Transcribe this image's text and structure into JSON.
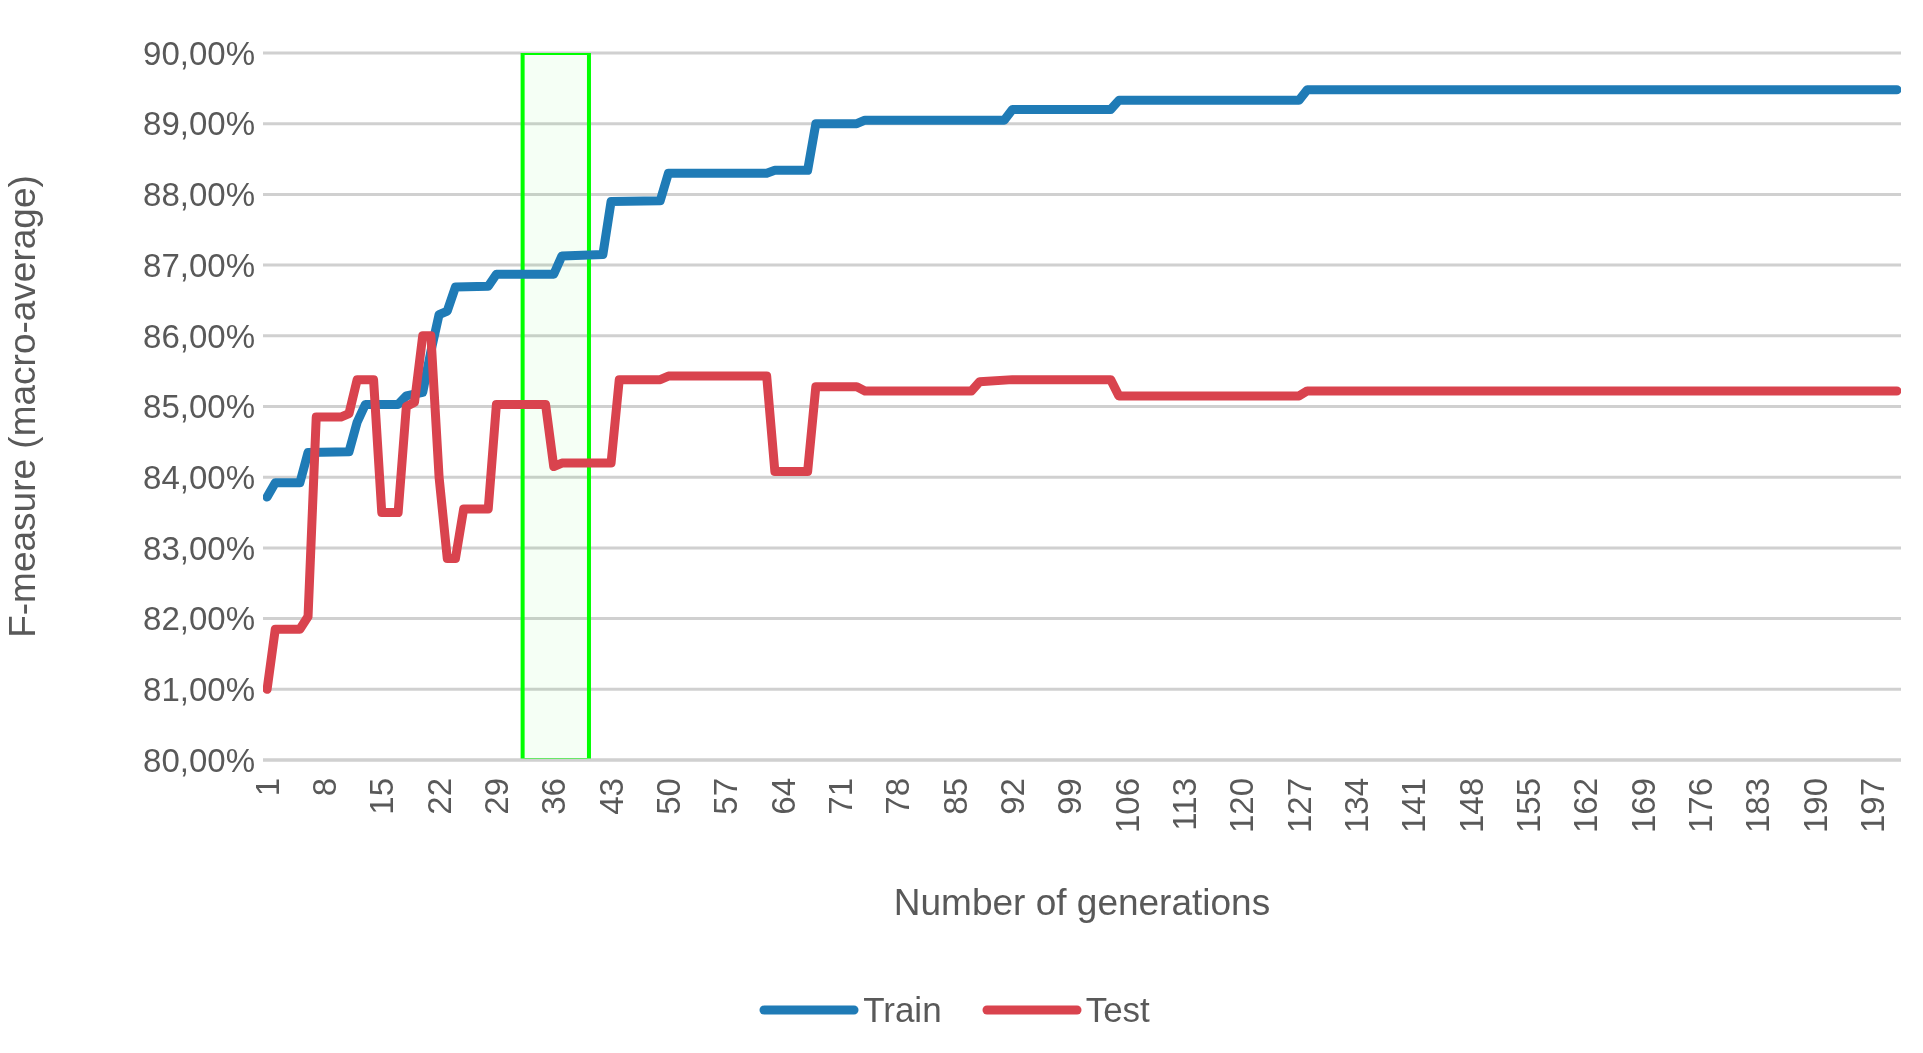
{
  "chart_data": {
    "type": "line",
    "xlabel": "Number of generations",
    "ylabel": "F-measure (macro-average)",
    "xlim": [
      0.5,
      200.5
    ],
    "xticks": [
      1,
      8,
      15,
      22,
      29,
      36,
      43,
      50,
      57,
      64,
      71,
      78,
      85,
      92,
      99,
      106,
      113,
      120,
      127,
      134,
      141,
      148,
      155,
      162,
      169,
      176,
      183,
      190,
      197
    ],
    "ylim": [
      80,
      90
    ],
    "yticks": [
      {
        "value": 80,
        "label": "80,00%"
      },
      {
        "value": 81,
        "label": "81,00%"
      },
      {
        "value": 82,
        "label": "82,00%"
      },
      {
        "value": 83,
        "label": "83,00%"
      },
      {
        "value": 84,
        "label": "84,00%"
      },
      {
        "value": 85,
        "label": "85,00%"
      },
      {
        "value": 86,
        "label": "86,00%"
      },
      {
        "value": 87,
        "label": "87,00%"
      },
      {
        "value": 88,
        "label": "88,00%"
      },
      {
        "value": 89,
        "label": "89,00%"
      },
      {
        "value": 90,
        "label": "90,00%"
      }
    ],
    "bands": [
      {
        "axis": "x",
        "from": 32.2,
        "to": 40.3,
        "color": "#00ff00"
      }
    ],
    "grid": "y",
    "legend": "bottom",
    "marker": "none",
    "line_style": "solid",
    "series": [
      {
        "name": "Train",
        "color": "#1f7bb6",
        "x": [
          1,
          2,
          5,
          6,
          11,
          12,
          13,
          17,
          18,
          20,
          21,
          22,
          23,
          24,
          28,
          29,
          36,
          37,
          42,
          43,
          49,
          50,
          62,
          63,
          67,
          68,
          73,
          74,
          91,
          92,
          104,
          105,
          127,
          128,
          200
        ],
        "values": [
          83.72,
          83.92,
          83.92,
          84.35,
          84.36,
          84.78,
          85.03,
          85.03,
          85.15,
          85.2,
          85.78,
          86.3,
          86.35,
          86.69,
          86.7,
          86.87,
          86.87,
          87.13,
          87.15,
          87.9,
          87.91,
          88.3,
          88.3,
          88.34,
          88.34,
          89.0,
          89.0,
          89.05,
          89.05,
          89.2,
          89.2,
          89.33,
          89.33,
          89.48,
          89.48
        ]
      },
      {
        "name": "Test",
        "color": "#d9434e",
        "x": [
          1,
          2,
          5,
          6,
          7,
          10,
          11,
          12,
          14,
          15,
          17,
          18,
          19,
          20,
          21,
          22,
          23,
          24,
          25,
          28,
          29,
          35,
          36,
          37,
          43,
          44,
          49,
          50,
          62,
          63,
          67,
          68,
          73,
          74,
          87,
          88,
          92,
          104,
          105,
          127,
          128,
          200
        ],
        "values": [
          81.0,
          81.85,
          81.85,
          82.03,
          84.85,
          84.85,
          84.9,
          85.38,
          85.38,
          83.5,
          83.5,
          85.0,
          85.06,
          86.0,
          86.0,
          84.0,
          82.85,
          82.85,
          83.55,
          83.55,
          85.03,
          85.03,
          84.15,
          84.2,
          84.2,
          85.38,
          85.38,
          85.43,
          85.43,
          84.08,
          84.08,
          85.28,
          85.28,
          85.22,
          85.22,
          85.35,
          85.38,
          85.38,
          85.15,
          85.15,
          85.22,
          85.22
        ]
      }
    ]
  }
}
